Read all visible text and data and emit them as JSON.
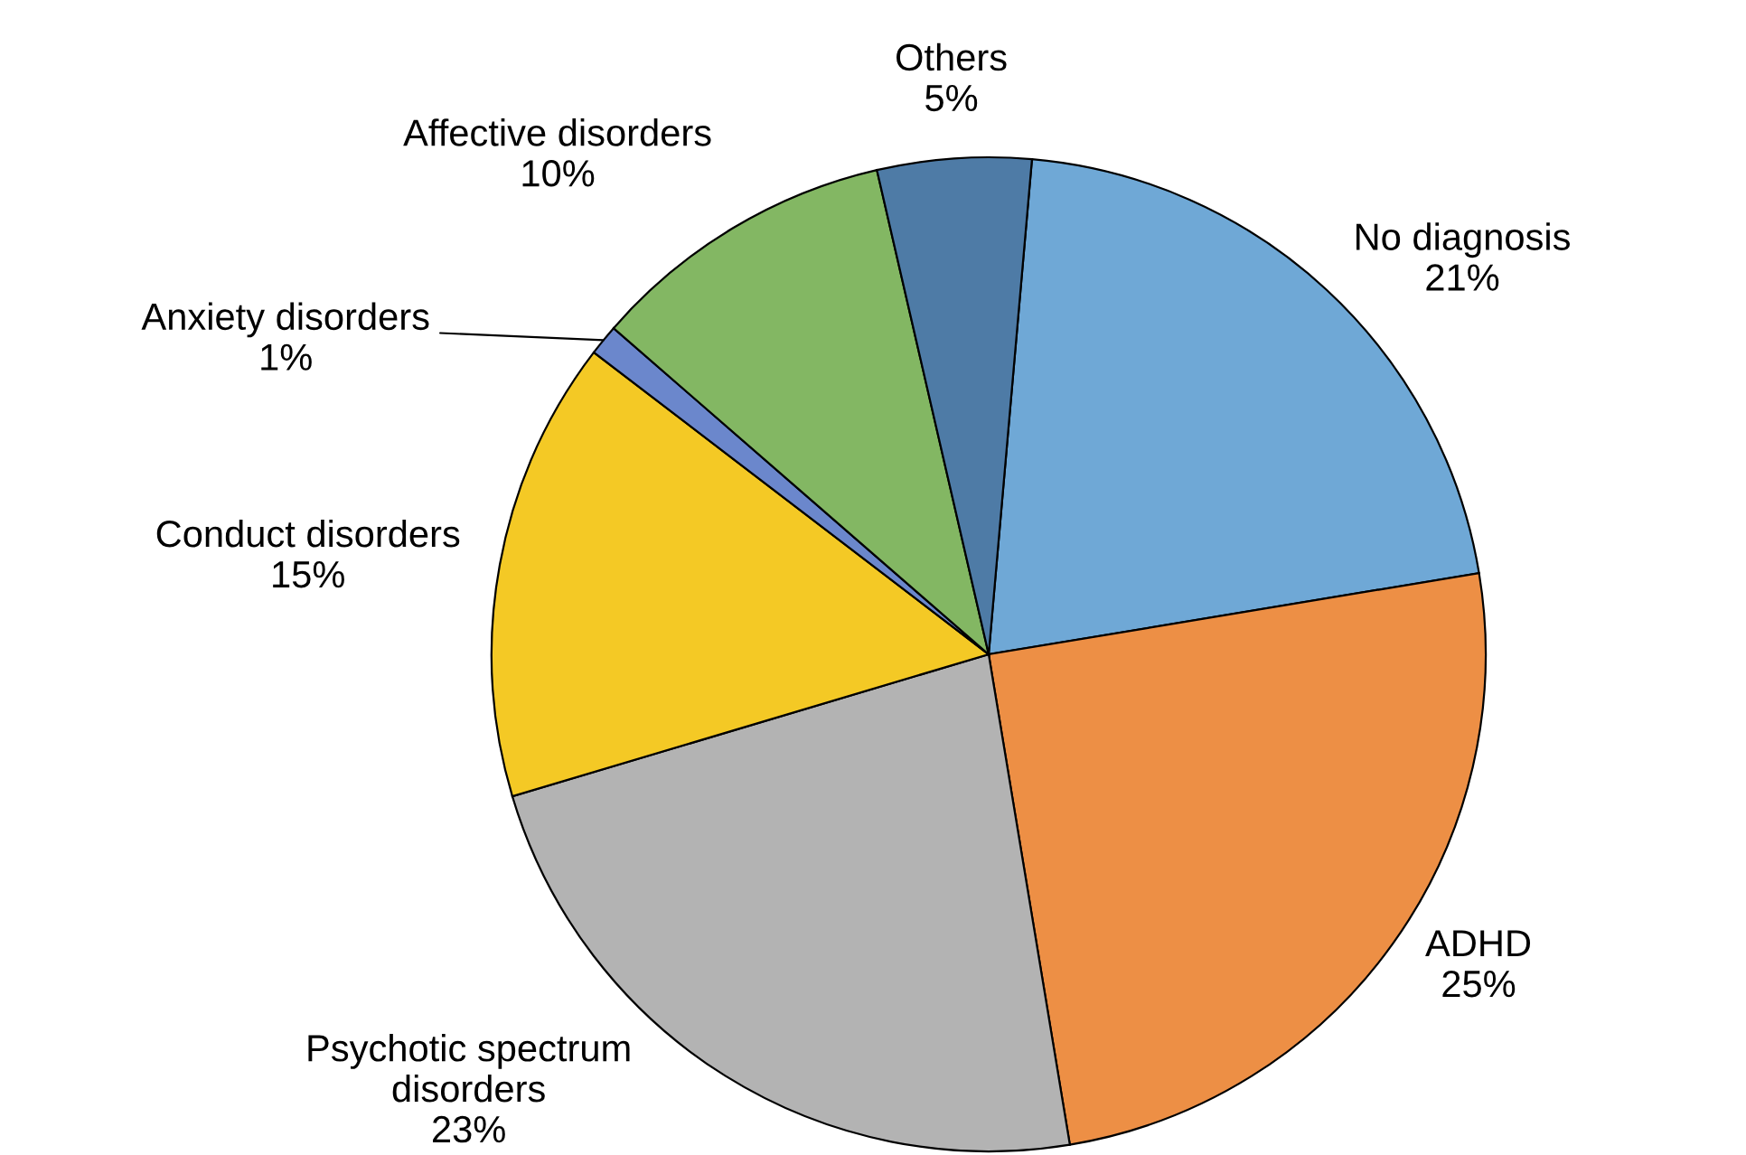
{
  "chart_data": {
    "type": "pie",
    "categories": [
      "No diagnosis",
      "ADHD",
      "Psychotic spectrum\ndisorders",
      "Conduct disorders",
      "Anxiety disorders",
      "Affective disorders",
      "Others"
    ],
    "values": [
      21,
      25,
      23,
      15,
      1,
      10,
      5
    ],
    "value_labels": [
      "21%",
      "25%",
      "23%",
      "15%",
      "1%",
      "10%",
      "5%"
    ],
    "colors": [
      "#6fa8d6",
      "#ed8f45",
      "#b3b3b3",
      "#f4c925",
      "#6b87cc",
      "#83b763",
      "#4e7ba6"
    ],
    "legend": false
  }
}
